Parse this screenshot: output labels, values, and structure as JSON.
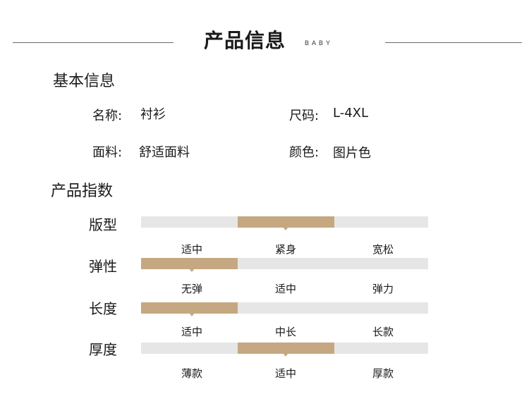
{
  "header": {
    "title": "产品信息",
    "subtitle": "BABY"
  },
  "basic": {
    "title": "基本信息",
    "name_label": "名称:",
    "name_value": "衬衫",
    "size_label": "尺码:",
    "size_value": "L-4XL",
    "fabric_label": "面料:",
    "fabric_value": "舒适面料",
    "color_label": "颜色:",
    "color_value": "图片色"
  },
  "index": {
    "title": "产品指数",
    "accent_color": "#c5a881",
    "track_color": "#e6e6e6",
    "rows": [
      {
        "label": "版型",
        "options": [
          "适中",
          "紧身",
          "宽松"
        ],
        "selected": 1
      },
      {
        "label": "弹性",
        "options": [
          "无弹",
          "适中",
          "弹力"
        ],
        "selected": 0
      },
      {
        "label": "长度",
        "options": [
          "适中",
          "中长",
          "长款"
        ],
        "selected": 0
      },
      {
        "label": "厚度",
        "options": [
          "薄款",
          "适中",
          "厚款"
        ],
        "selected": 1
      }
    ]
  }
}
